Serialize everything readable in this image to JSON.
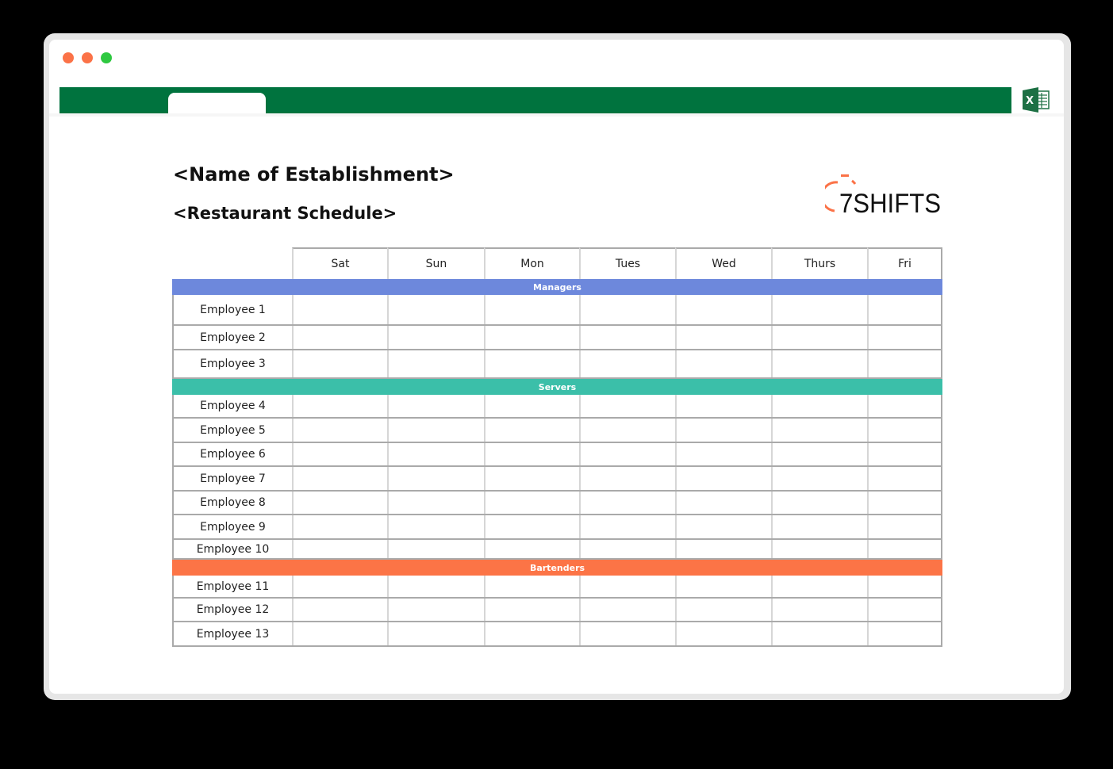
{
  "window": {
    "dots": [
      "#fb7247",
      "#fb7247",
      "#2ec840"
    ],
    "accent": "#00733e",
    "excel_icon": "excel-icon"
  },
  "document": {
    "title": "<Name of Establishment>",
    "subtitle": "<Restaurant Schedule>",
    "logo": "7SHIFTS"
  },
  "schedule": {
    "days": [
      "Sat",
      "Sun",
      "Mon",
      "Tues",
      "Wed",
      "Thurs",
      "Fri"
    ],
    "sections": [
      {
        "name": "Managers",
        "color": "#6d88dc",
        "employees": [
          "Employee 1",
          "Employee 2",
          "Employee 3"
        ]
      },
      {
        "name": "Servers",
        "color": "#3bbfa9",
        "employees": [
          "Employee 4",
          "Employee 5",
          "Employee 6",
          "Employee 7",
          "Employee 8",
          "Employee 9",
          "Employee 10"
        ]
      },
      {
        "name": "Bartenders",
        "color": "#fc7446",
        "employees": [
          "Employee 11",
          "Employee 12",
          "Employee 13"
        ]
      }
    ]
  }
}
